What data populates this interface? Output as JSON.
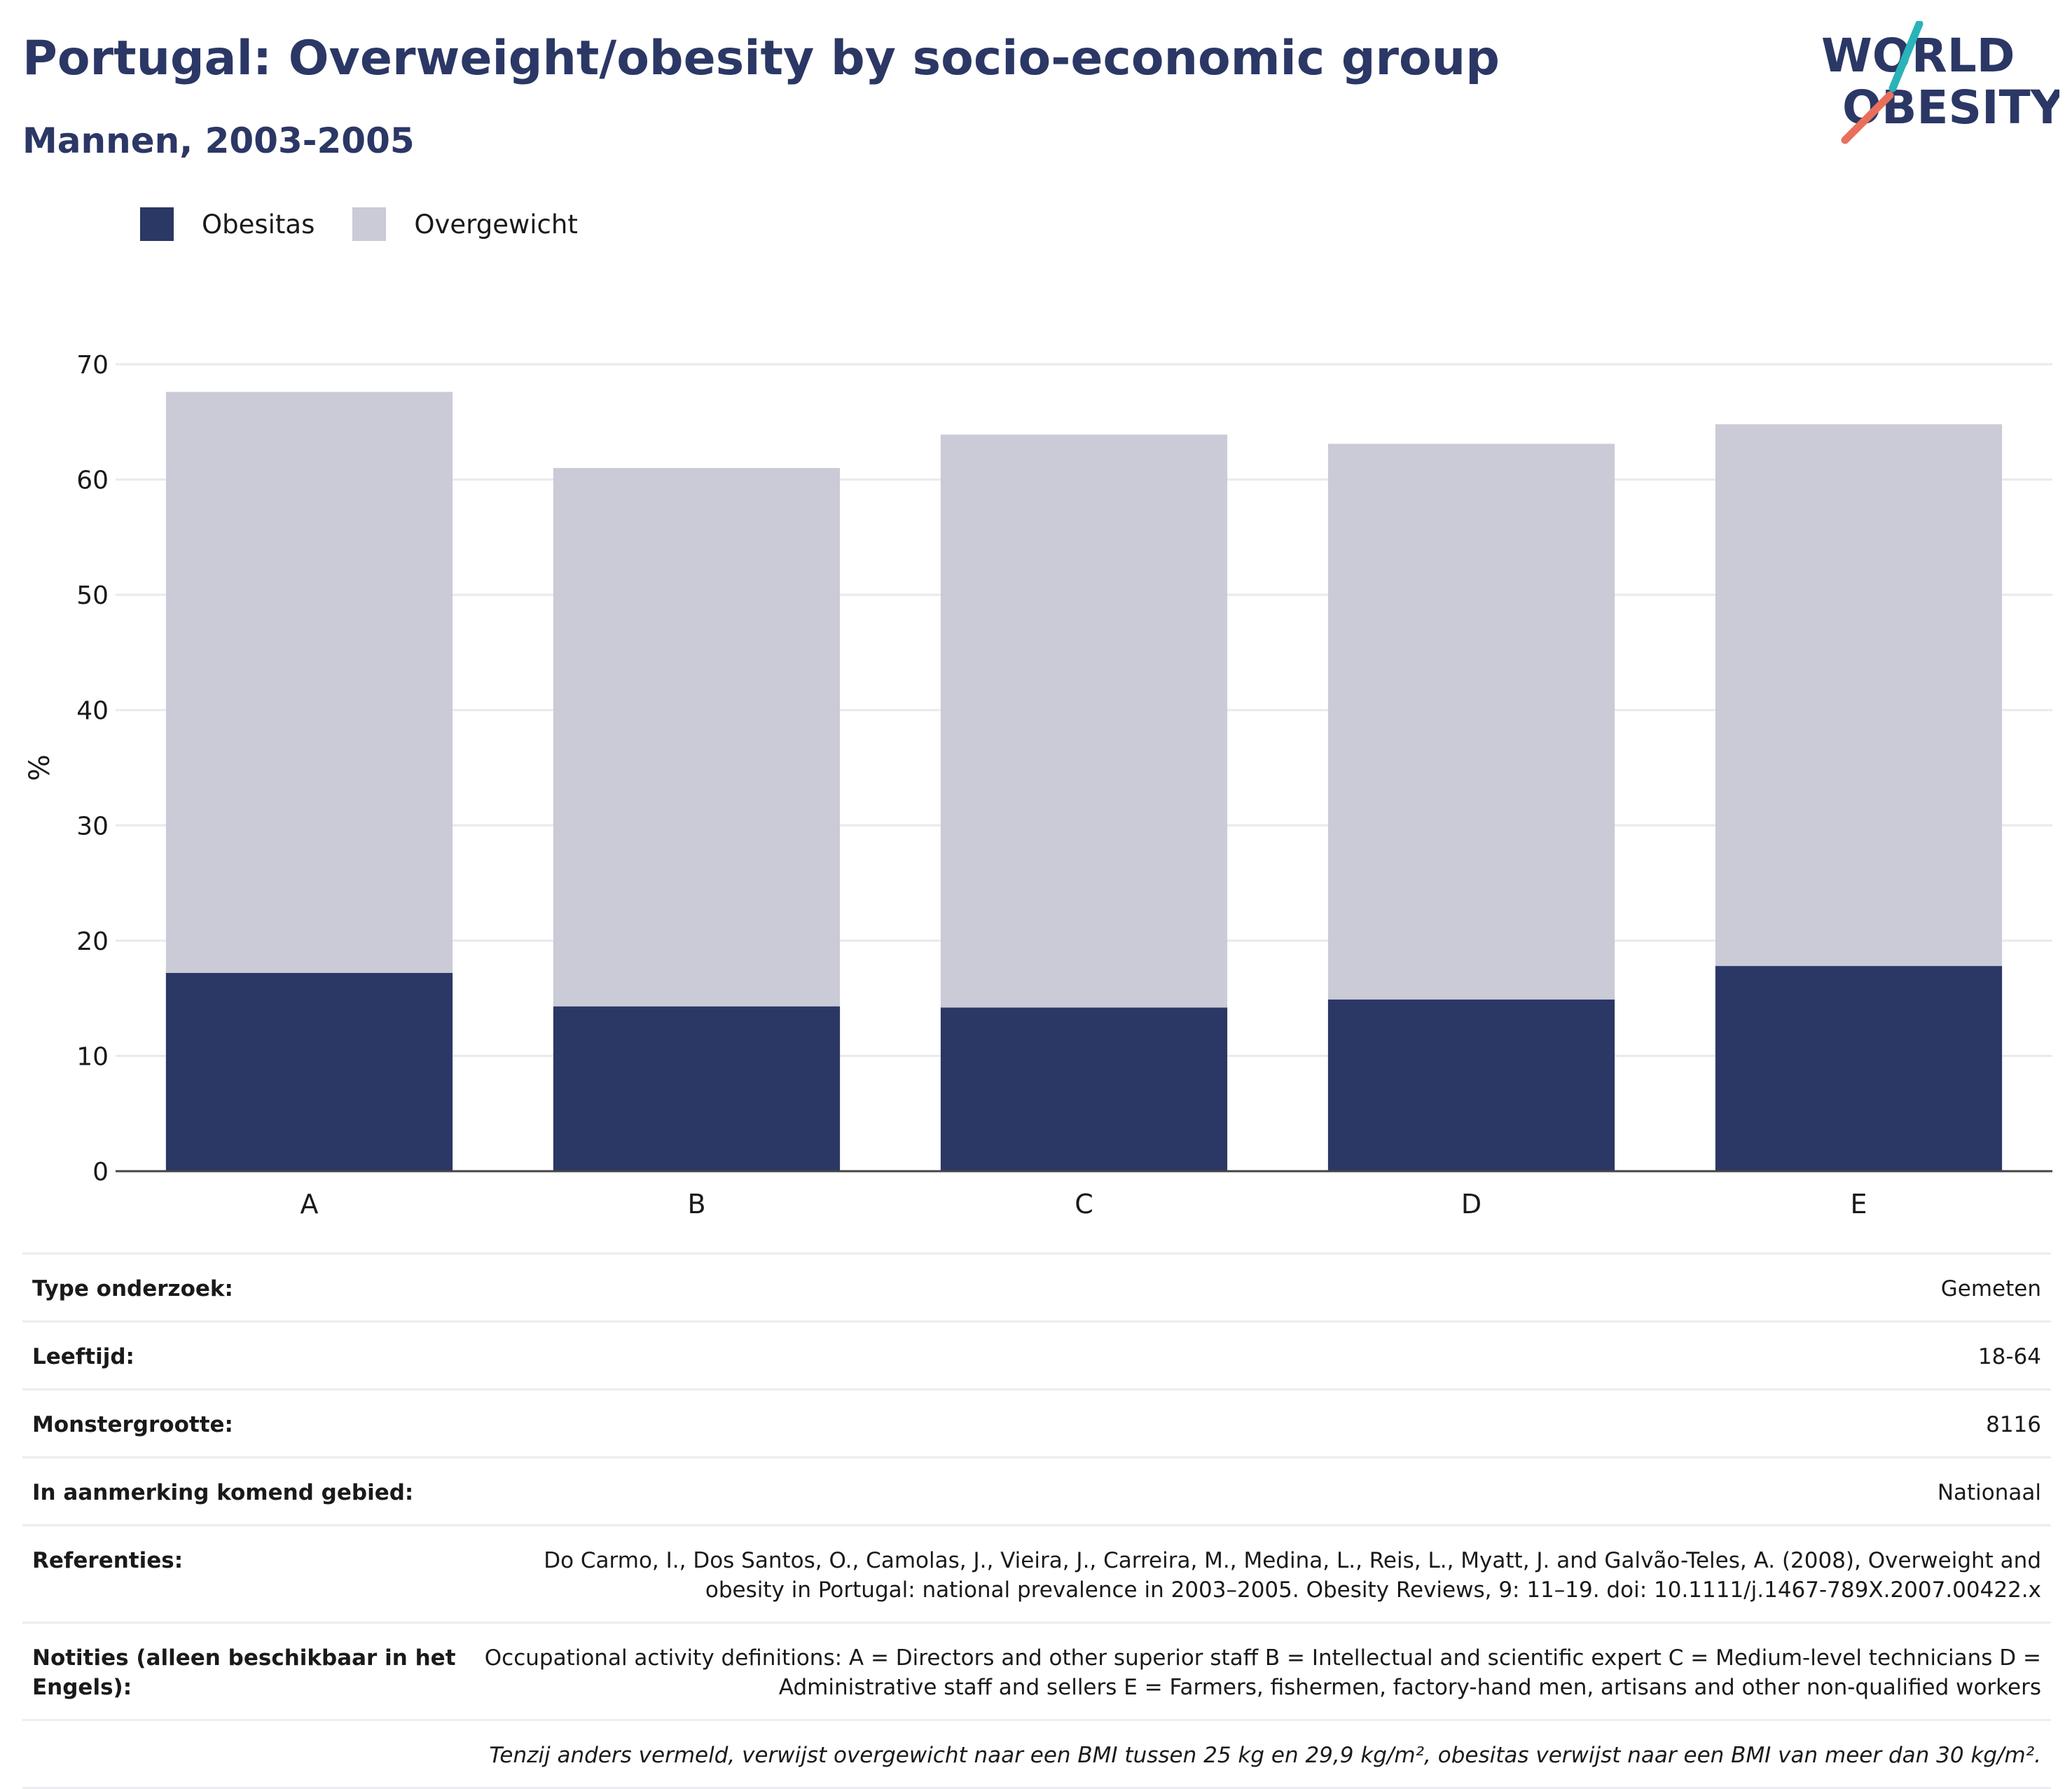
{
  "header": {
    "title": "Portugal: Overweight/obesity by socio-economic group",
    "subtitle": "Mannen, 2003-2005"
  },
  "logo": {
    "line1": "WORLD",
    "line2": "OBESITY"
  },
  "colors": {
    "obesity": "#2b3765",
    "overweight": "#cacbd7",
    "title": "#2b3765",
    "accent_teal": "#2ab3b8",
    "accent_red": "#e8705b"
  },
  "chart_data": {
    "type": "bar",
    "stacked": true,
    "categories": [
      "A",
      "B",
      "C",
      "D",
      "E"
    ],
    "series": [
      {
        "name": "Obesitas",
        "values": [
          17.2,
          14.3,
          14.2,
          14.9,
          17.8
        ]
      },
      {
        "name": "Overgewicht",
        "values": [
          50.4,
          46.7,
          49.7,
          48.2,
          47.0
        ]
      }
    ],
    "ylabel": "%",
    "ylim": [
      0,
      70
    ],
    "yticks": [
      0,
      10,
      20,
      30,
      40,
      50,
      60,
      70
    ],
    "grid": true,
    "legend_position": "top-left"
  },
  "info": {
    "rows": [
      {
        "label": "Type onderzoek:",
        "value": "Gemeten"
      },
      {
        "label": "Leeftijd:",
        "value": "18-64"
      },
      {
        "label": "Monstergrootte:",
        "value": "8116"
      },
      {
        "label": "In aanmerking komend gebied:",
        "value": "Nationaal"
      },
      {
        "label": "Referenties:",
        "value": "Do Carmo, I., Dos Santos, O., Camolas, J., Vieira, J., Carreira, M., Medina, L., Reis, L., Myatt, J. and Galvão-Teles, A. (2008), Overweight and obesity in Portugal: national prevalence in 2003–2005. Obesity Reviews, 9: 11–19. doi: 10.1111/j.1467-789X.2007.00422.x"
      },
      {
        "label": "Notities (alleen beschikbaar in het Engels):",
        "value": "Occupational activity definitions: A = Directors and other superior staff B = Intellectual and scientific expert C = Medium-level technicians D = Administrative staff and sellers E = Farmers, fishermen, factory-hand men, artisans and other non-qualified workers"
      }
    ],
    "footnote": "Tenzij anders vermeld, verwijst overgewicht naar een BMI tussen 25 kg en 29,9 kg/m², obesitas verwijst naar een BMI van meer dan 30 kg/m²."
  }
}
